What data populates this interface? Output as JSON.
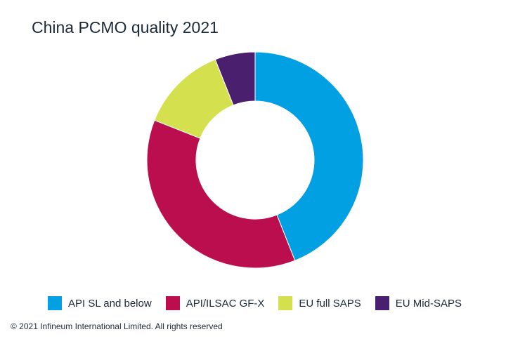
{
  "chart_data": {
    "type": "pie",
    "variant": "donut",
    "title": "China PCMO quality 2021",
    "categories": [
      "API SL and below",
      "API/ILSAC GF-X",
      "EU full SAPS",
      "EU Mid-SAPS"
    ],
    "values": [
      44,
      37,
      13,
      6
    ],
    "unit": "%",
    "colors": [
      "#00a0e2",
      "#bb0e4f",
      "#d4e04d",
      "#4a1f6e"
    ],
    "legend_position": "bottom"
  },
  "footer": {
    "copyright": "© 2021 Infineum International Limited. All rights reserved"
  }
}
